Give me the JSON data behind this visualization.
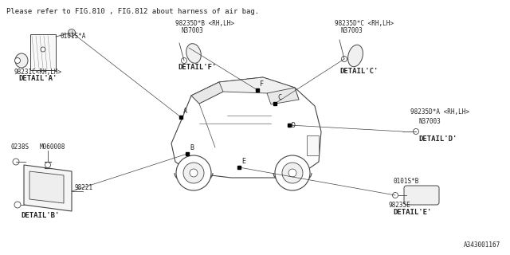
{
  "bg_color": "#ffffff",
  "border_color": "#444444",
  "text_color": "#222222",
  "title_text": "Please refer to FIG.810 , FIG.812 about harness of air bag.",
  "part_number_bottom": "A343001167",
  "detail_a_label": "98231C<RH,LH>",
  "detail_a_sub": "DETAIL'A'",
  "detail_a_part": "0101S*A",
  "detail_b_label": "98221",
  "detail_b_sub": "DETAIL'B'",
  "detail_b_part1": "0238S",
  "detail_b_part2": "M060008",
  "detail_f_label": "98235D*B <RH,LH>",
  "detail_f_n": "N37003",
  "detail_f_sub": "DETAIL'F'",
  "detail_c_label": "98235D*C <RH,LH>",
  "detail_c_n": "N37003",
  "detail_c_sub": "DETAIL'C'",
  "detail_d_label": "98235D*A <RH,LH>",
  "detail_d_n": "N37003",
  "detail_d_sub": "DETAIL'D'",
  "detail_e_label": "98235E",
  "detail_e_sub": "DETAIL'E'",
  "detail_e_part": "0101S*B",
  "font_size_title": 6.5,
  "font_size_label": 5.5,
  "font_size_detail": 6.0,
  "font_size_sub": 6.5
}
